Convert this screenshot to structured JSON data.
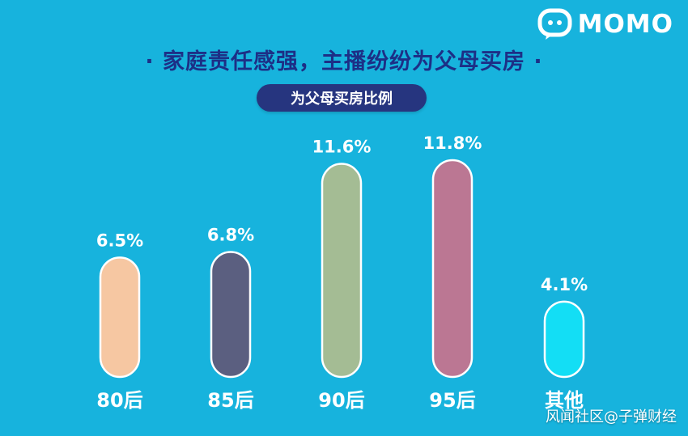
{
  "brand": {
    "name": "MOMO"
  },
  "header": {
    "title": "· 家庭责任感强，主播纷纷为父母买房 ·",
    "subtitle": "为父母买房比例"
  },
  "watermark": "风闻社区@子弹财经",
  "colors": {
    "background": "#17b3dd",
    "title": "#1d2f86",
    "pill": "#26357f"
  },
  "chart_data": {
    "type": "bar",
    "categories": [
      "80后",
      "85后",
      "90后",
      "95后",
      "其他"
    ],
    "values": [
      6.5,
      6.8,
      11.6,
      11.8,
      4.1
    ],
    "labels": [
      "6.5%",
      "6.8%",
      "11.6%",
      "11.8%",
      "4.1%"
    ],
    "colors": [
      "#f6c7a2",
      "#5b5f80",
      "#a4bc94",
      "#bb7793",
      "#13def5"
    ],
    "title": "为父母买房比例",
    "ylim": [
      0,
      11.8
    ],
    "grid": false,
    "legend": "none"
  }
}
